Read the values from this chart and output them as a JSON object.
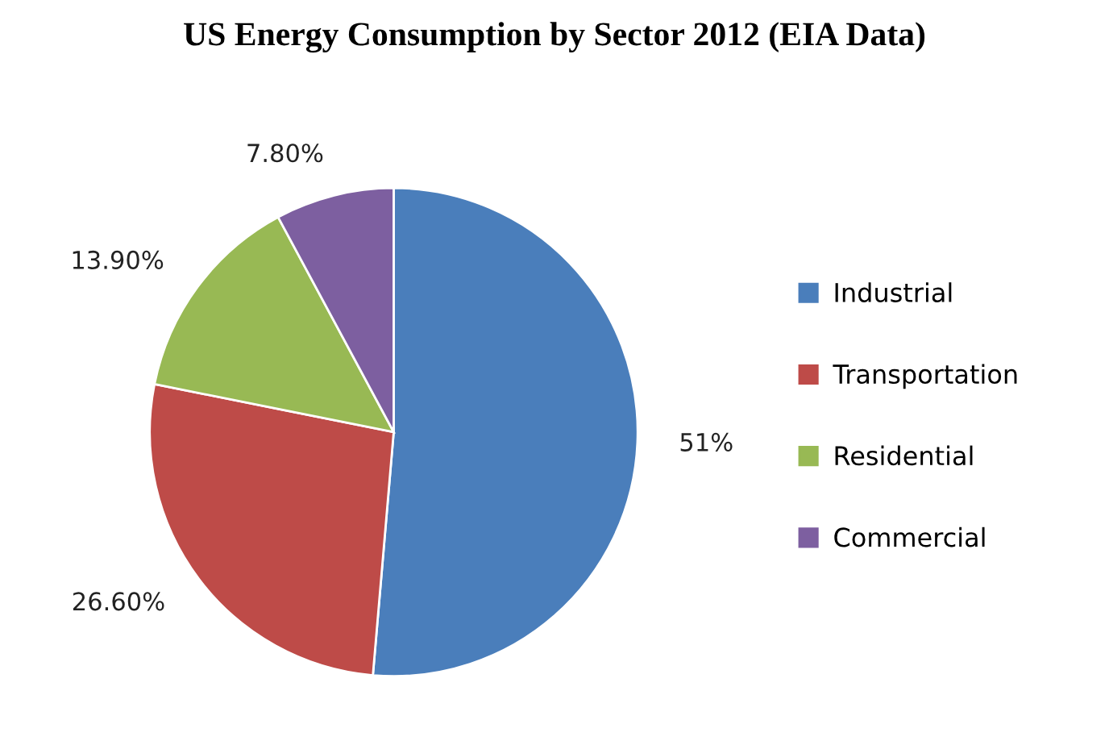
{
  "chart_data": {
    "type": "pie",
    "title": "US Energy Consumption by Sector 2012 (EIA Data)",
    "categories": [
      "Industrial",
      "Transportation",
      "Residential",
      "Commercial"
    ],
    "values": [
      51,
      26.6,
      13.9,
      7.8
    ],
    "value_labels": [
      "51%",
      "26.60%",
      "13.90%",
      "7.80%"
    ],
    "colors": [
      "#4a7ebb",
      "#be4b48",
      "#98b954",
      "#7d5fa0"
    ],
    "legend": "right"
  }
}
